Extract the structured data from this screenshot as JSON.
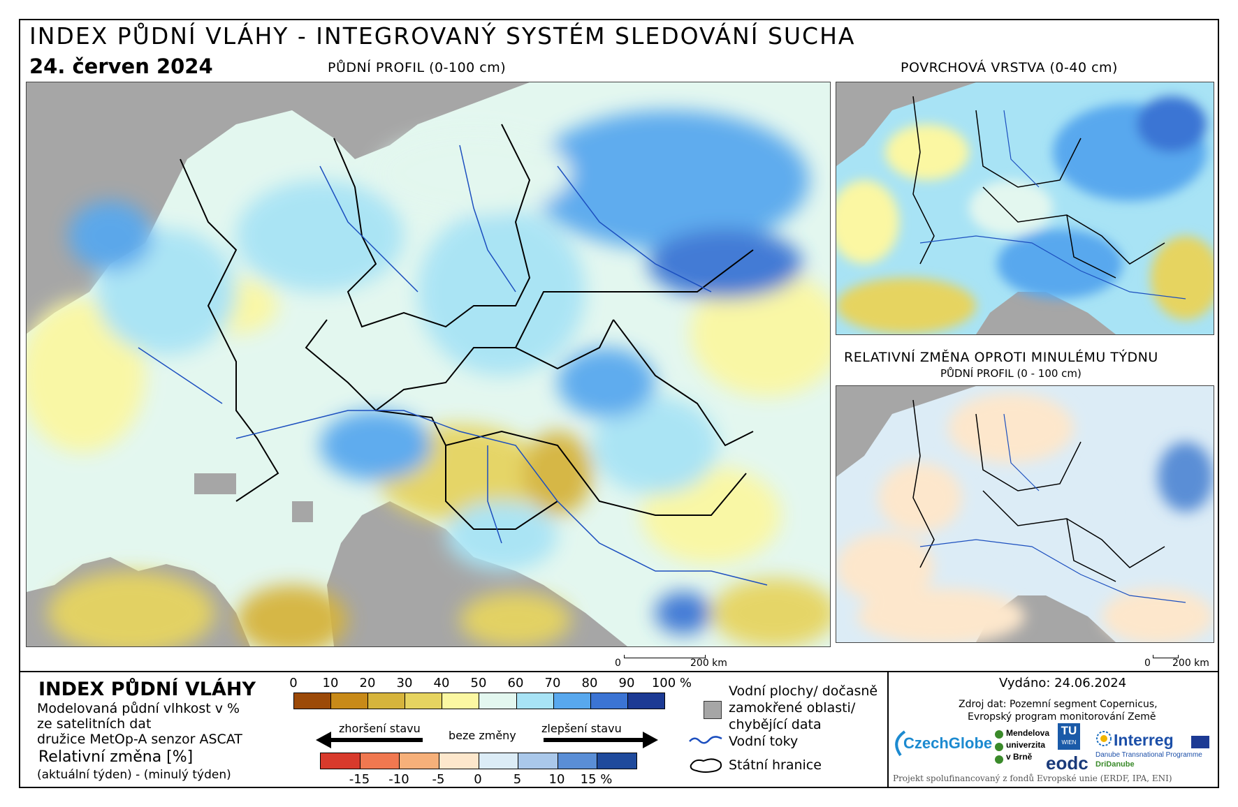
{
  "header": {
    "title": "INDEX PŮDNÍ VLÁHY - INTEGROVANÝ SYSTÉM SLEDOVÁNÍ SUCHA",
    "date": "24. červen 2024"
  },
  "maps": {
    "main_label": "PŮDNÍ PROFIL (0-100 cm)",
    "surface_label": "POVRCHOVÁ VRSTVA (0-40 cm)",
    "change_label": "RELATIVNÍ ZMĚNA OPROTI MINULÉMU TÝDNU",
    "change_sublabel": "PŮDNÍ PROFIL (0 - 100 cm)",
    "scale_main_zero": "0",
    "scale_main_end": "200 km",
    "scale_small_zero": "0",
    "scale_small_end": "200 km"
  },
  "colors": {
    "ocean": "#a6a6a6",
    "dry": "#f7e28a",
    "neutral": "#e6f8f4",
    "wet": "#9fdcf2",
    "very_wet": "#2f6fd6"
  },
  "legend": {
    "heading": "INDEX PŮDNÍ VLÁHY",
    "desc_1": "Modelovaná půdní vlhkost v %",
    "desc_2": "ze satelitních dat",
    "desc_3": "družice MetOp-A senzor ASCAT",
    "rel_heading": "Relativní změna [%]",
    "rel_desc": "(aktuální týden) - (minulý týden)",
    "index_ticks": [
      "0",
      "10",
      "20",
      "30",
      "40",
      "50",
      "60",
      "70",
      "80",
      "90",
      "100 %"
    ],
    "index_colors": [
      "#9c4a08",
      "#c88a18",
      "#d6b43c",
      "#e6d460",
      "#fbf7a2",
      "#e3f7ef",
      "#a8e3f5",
      "#58a8ee",
      "#3b74d4",
      "#1c3a94"
    ],
    "worse": "zhoršení stavu",
    "nochange": "beze změny",
    "better": "zlepšení stavu",
    "change_ticks": [
      "-15",
      "-10",
      "-5",
      "0",
      "5",
      "10",
      "15 %"
    ],
    "change_colors": [
      "#d83a2c",
      "#f07850",
      "#f6b07a",
      "#fde7cc",
      "#dcecf6",
      "#aac8ea",
      "#5a8ed6",
      "#1f4a9c"
    ],
    "water_1": "Vodní plochy/ dočasně",
    "water_2": "zamokřené oblasti/",
    "water_3": "chybějící data",
    "rivers": "Vodní toky",
    "borders": "Státní hranice"
  },
  "info": {
    "issued": "Vydáno: 24.06.2024",
    "source_1": "Zdroj dat: Pozemní segment Copernicus,",
    "source_2": "Evropský program monitorování Země",
    "logo_czechglobe": "CzechGlobe",
    "logo_mendel_1": "Mendelova",
    "logo_mendel_2": "univerzita",
    "logo_mendel_3": "v Brně",
    "logo_tu_1": "TU",
    "logo_tu_2": "WIEN",
    "logo_eodc": "eodc",
    "logo_interreg": "Interreg",
    "logo_interreg_sub": "Danube Transnational Programme",
    "logo_dridanube": "DriDanube",
    "funding": "Projekt spolufinancovaný z fondů Evropské unie (ERDF, IPA, ENI)"
  }
}
